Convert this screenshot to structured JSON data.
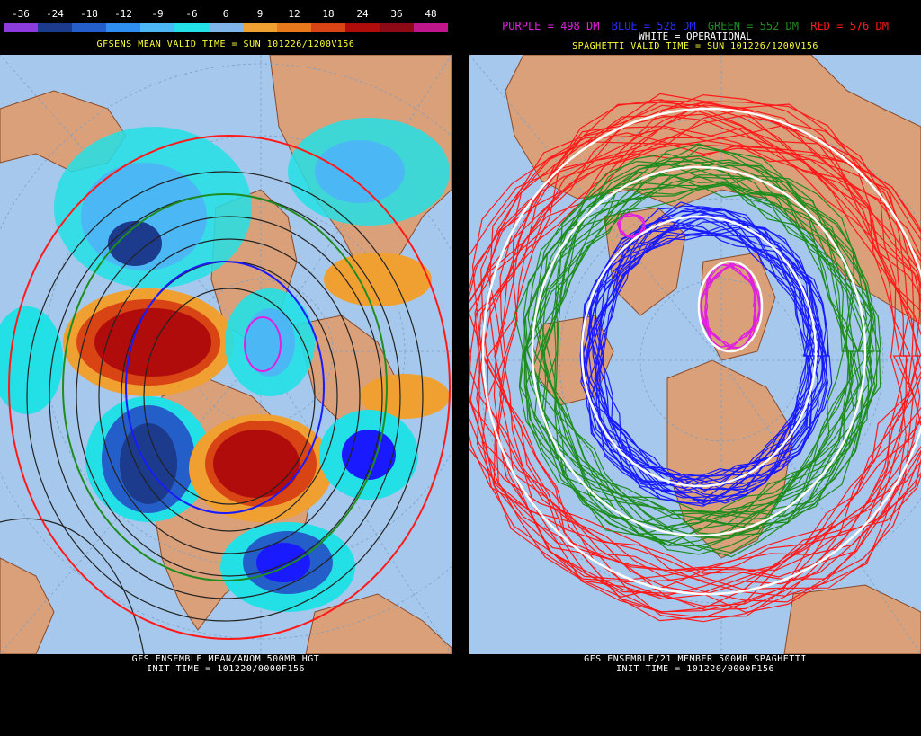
{
  "left": {
    "colorbar": {
      "ticks": [
        "-36",
        "-24",
        "-18",
        "-12",
        "-9",
        "-6",
        "6",
        "9",
        "12",
        "18",
        "24",
        "36",
        "48"
      ],
      "colors": [
        "#8c3cdc",
        "#1d3b8c",
        "#245ec8",
        "#2f8ff0",
        "#4bb8f5",
        "#22e0e6",
        "#7fb4e8",
        "#f0a030",
        "#e8781c",
        "#d84414",
        "#b00c0c",
        "#8c0a14",
        "#c0168c"
      ]
    },
    "title": "GFSENS MEAN VALID TIME = SUN 101226/1200V156",
    "footer_line1": "GFS ENSEMBLE MEAN/ANOM 500MB HGT",
    "footer_line2": "INIT TIME = 101220/0000F156"
  },
  "right": {
    "legend": {
      "purple": "PURPLE = 498 DM",
      "blue": "BLUE = 528 DM",
      "green": "GREEN = 552 DM",
      "red": "RED = 576 DM",
      "white": "WHITE = OPERATIONAL"
    },
    "title": "SPAGHETTI VALID TIME = SUN 101226/1200V156",
    "footer_line1": "GFS ENSEMBLE/21 MEMBER 500MB SPAGHETTI",
    "footer_line2": "INIT TIME = 101220/0000F156"
  },
  "colors": {
    "ocean": "#a6c8ec",
    "land": "#d9a07a",
    "coast": "#8a4a2a",
    "title": "#ffff33",
    "purple": "#e020e0",
    "blue": "#1a1aff",
    "green": "#1e8c1e",
    "red": "#ff1a1a",
    "white": "#ffffff"
  }
}
